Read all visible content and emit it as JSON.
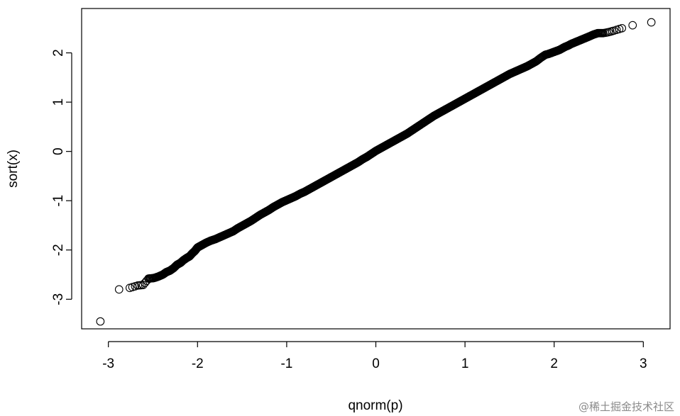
{
  "chart_data": {
    "type": "scatter",
    "title": "",
    "xlabel": "qnorm(p)",
    "ylabel": "sort(x)",
    "xlim": [
      -3.3,
      3.3
    ],
    "ylim": [
      -3.6,
      2.9
    ],
    "x_ticks": [
      -3,
      -2,
      -1,
      0,
      1,
      2,
      3
    ],
    "x_tick_labels": [
      "-3",
      "-2",
      "-1",
      "0",
      "1",
      "2",
      "3"
    ],
    "y_ticks": [
      -3,
      -2,
      -1,
      0,
      1,
      2
    ],
    "y_tick_labels": [
      "-3",
      "-2",
      "-1",
      "0",
      "1",
      "2"
    ],
    "grid": false,
    "marker": "open-circle",
    "marker_color": "#000000",
    "series": [
      {
        "x": [
          -3.09,
          -2.88,
          -2.76,
          -2.67,
          -2.61,
          -2.55,
          -2.49,
          -2.44,
          -2.39,
          -2.35,
          -2.31,
          -2.27,
          -2.23,
          -2.19,
          -2.16,
          -2.12,
          -2.09,
          -2.06,
          -2.03,
          -2.0,
          -1.97,
          -1.94,
          -1.9,
          -1.85,
          -1.8,
          -1.75,
          -1.7,
          -1.65,
          -1.6,
          -1.55,
          -1.5,
          -1.45,
          -1.4,
          -1.35,
          -1.3,
          -1.25,
          -1.2,
          -1.15,
          -1.1,
          -1.05,
          -1.0,
          -0.95,
          -0.9,
          -0.85,
          -0.8,
          -0.75,
          -0.7,
          -0.65,
          -0.6,
          -0.55,
          -0.5,
          -0.45,
          -0.4,
          -0.35,
          -0.3,
          -0.25,
          -0.2,
          -0.15,
          -0.1,
          -0.05,
          0.0,
          0.05,
          0.1,
          0.15,
          0.2,
          0.25,
          0.3,
          0.35,
          0.4,
          0.45,
          0.5,
          0.55,
          0.6,
          0.65,
          0.7,
          0.75,
          0.8,
          0.85,
          0.9,
          0.95,
          1.0,
          1.05,
          1.1,
          1.15,
          1.2,
          1.25,
          1.3,
          1.35,
          1.4,
          1.45,
          1.5,
          1.55,
          1.6,
          1.65,
          1.7,
          1.75,
          1.8,
          1.85,
          1.9,
          1.94,
          1.97,
          2.0,
          2.03,
          2.06,
          2.09,
          2.12,
          2.16,
          2.19,
          2.23,
          2.27,
          2.31,
          2.35,
          2.39,
          2.44,
          2.49,
          2.55,
          2.61,
          2.67,
          2.76,
          2.88,
          3.09
        ],
        "y": [
          -3.45,
          -2.8,
          -2.77,
          -2.72,
          -2.71,
          -2.58,
          -2.57,
          -2.54,
          -2.5,
          -2.45,
          -2.42,
          -2.37,
          -2.3,
          -2.26,
          -2.21,
          -2.16,
          -2.13,
          -2.07,
          -2.02,
          -1.95,
          -1.92,
          -1.89,
          -1.85,
          -1.81,
          -1.78,
          -1.74,
          -1.7,
          -1.66,
          -1.62,
          -1.56,
          -1.51,
          -1.46,
          -1.41,
          -1.35,
          -1.29,
          -1.24,
          -1.19,
          -1.13,
          -1.08,
          -1.03,
          -0.99,
          -0.95,
          -0.91,
          -0.86,
          -0.82,
          -0.77,
          -0.72,
          -0.67,
          -0.62,
          -0.57,
          -0.52,
          -0.47,
          -0.42,
          -0.37,
          -0.32,
          -0.27,
          -0.22,
          -0.16,
          -0.11,
          -0.05,
          0.01,
          0.06,
          0.11,
          0.16,
          0.21,
          0.26,
          0.31,
          0.36,
          0.42,
          0.48,
          0.54,
          0.6,
          0.66,
          0.72,
          0.77,
          0.82,
          0.87,
          0.92,
          0.97,
          1.02,
          1.07,
          1.12,
          1.17,
          1.22,
          1.27,
          1.32,
          1.37,
          1.42,
          1.47,
          1.52,
          1.57,
          1.61,
          1.65,
          1.69,
          1.73,
          1.78,
          1.83,
          1.9,
          1.96,
          1.98,
          2.0,
          2.02,
          2.04,
          2.06,
          2.09,
          2.12,
          2.15,
          2.18,
          2.21,
          2.24,
          2.27,
          2.3,
          2.33,
          2.37,
          2.4,
          2.4,
          2.42,
          2.45,
          2.5,
          2.56,
          2.62
        ]
      }
    ]
  },
  "watermark": "@稀土掘金技术社区"
}
